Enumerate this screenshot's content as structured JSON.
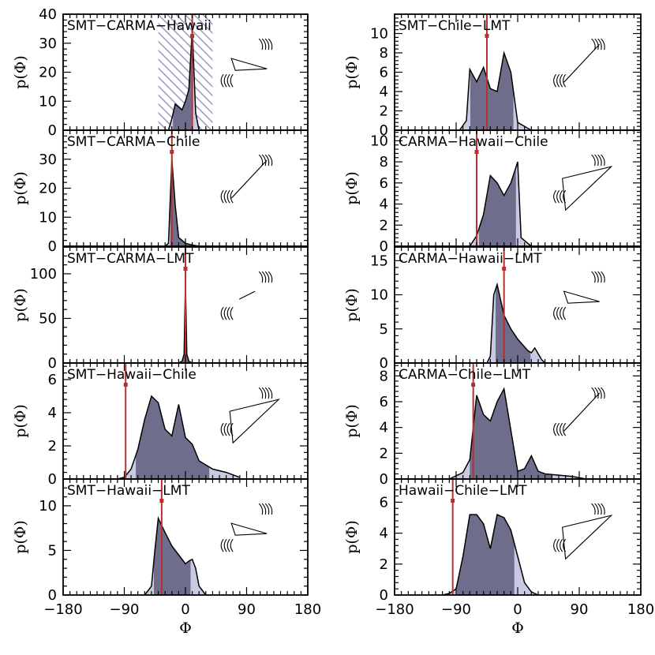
{
  "chart_data": [
    {
      "type": "area",
      "title": "SMT−CARMA−Hawaii",
      "ylabel": "p(Φ)",
      "ylim": [
        0,
        40
      ],
      "yticks": [
        0,
        10,
        20,
        30,
        40
      ],
      "xlim": [
        -180,
        180
      ],
      "x": [
        -25,
        -20,
        -15,
        -10,
        -5,
        0,
        5,
        10,
        15,
        20
      ],
      "y": [
        0,
        4,
        9,
        8,
        7,
        10,
        14,
        35,
        6,
        0
      ],
      "marker": 10,
      "shaded_region": [
        -40,
        40
      ],
      "sketch": "thin-triangle"
    },
    {
      "type": "area",
      "title": "SMT−Chile−LMT",
      "ylabel": "p(Φ)",
      "ylim": [
        0,
        12
      ],
      "yticks": [
        0,
        2,
        4,
        6,
        8,
        10
      ],
      "xlim": [
        -180,
        180
      ],
      "x": [
        -85,
        -75,
        -70,
        -60,
        -50,
        -40,
        -30,
        -20,
        -10,
        0,
        10,
        20
      ],
      "y": [
        0,
        1,
        6.3,
        5,
        6.5,
        4.3,
        4,
        8,
        6,
        0.8,
        0.4,
        0
      ],
      "marker": -45,
      "sketch": "line"
    },
    {
      "type": "area",
      "title": "SMT−CARMA−Chile",
      "ylabel": "p(Φ)",
      "ylim": [
        0,
        40
      ],
      "yticks": [
        0,
        10,
        20,
        30
      ],
      "xlim": [
        -180,
        180
      ],
      "x": [
        -30,
        -25,
        -20,
        -15,
        -10,
        0,
        10,
        20
      ],
      "y": [
        0,
        1,
        30,
        14,
        3,
        1,
        0.4,
        0
      ],
      "marker": -20,
      "sketch": "line"
    },
    {
      "type": "area",
      "title": "CARMA−Hawaii−Chile",
      "ylabel": "p(Φ)",
      "ylim": [
        0,
        11
      ],
      "yticks": [
        0,
        2,
        4,
        6,
        8,
        10
      ],
      "xlim": [
        -180,
        180
      ],
      "x": [
        -70,
        -60,
        -50,
        -40,
        -30,
        -20,
        -10,
        0,
        5,
        20
      ],
      "y": [
        0,
        1,
        3,
        6.7,
        6,
        4.8,
        6,
        8,
        0.8,
        0
      ],
      "marker": -60,
      "sketch": "wide-triangle"
    },
    {
      "type": "area",
      "title": "SMT−CARMA−LMT",
      "ylabel": "p(Φ)",
      "ylim": [
        0,
        130
      ],
      "yticks": [
        0,
        50,
        100
      ],
      "xlim": [
        -180,
        180
      ],
      "x": [
        -10,
        -5,
        -2,
        0,
        2,
        5,
        10
      ],
      "y": [
        0,
        2,
        10,
        90,
        10,
        2,
        0
      ],
      "marker": 0,
      "sketch": "short-line"
    },
    {
      "type": "area",
      "title": "CARMA−Hawaii−LMT",
      "ylabel": "p(Φ)",
      "ylim": [
        0,
        17
      ],
      "yticks": [
        0,
        5,
        10,
        15
      ],
      "xlim": [
        -180,
        180
      ],
      "x": [
        -45,
        -40,
        -35,
        -30,
        -20,
        -10,
        0,
        15,
        20,
        25,
        35,
        40
      ],
      "y": [
        0,
        1,
        10,
        11.5,
        7,
        5,
        3.5,
        1.8,
        1.5,
        2.2,
        0.5,
        0
      ],
      "marker": -20,
      "sketch": "thin-triangle"
    },
    {
      "type": "area",
      "title": "SMT−Hawaii−Chile",
      "ylabel": "p(Φ)",
      "ylim": [
        0,
        7
      ],
      "yticks": [
        0,
        2,
        4,
        6
      ],
      "xlim": [
        -180,
        180
      ],
      "x": [
        -100,
        -90,
        -80,
        -70,
        -60,
        -50,
        -40,
        -30,
        -20,
        -10,
        0,
        10,
        20,
        40,
        60,
        80
      ],
      "y": [
        0,
        0.1,
        0.6,
        1.8,
        3.6,
        5,
        4.6,
        3,
        2.6,
        4.5,
        2.5,
        2.1,
        1.1,
        0.6,
        0.4,
        0.1
      ],
      "marker": -88,
      "sketch": "wide-triangle"
    },
    {
      "type": "area",
      "title": "CARMA−Chile−LMT",
      "ylabel": "p(Φ)",
      "ylim": [
        0,
        9
      ],
      "yticks": [
        0,
        2,
        4,
        6,
        8
      ],
      "xlim": [
        -180,
        180
      ],
      "x": [
        -100,
        -80,
        -70,
        -60,
        -50,
        -40,
        -30,
        -20,
        0,
        10,
        20,
        30,
        40,
        60,
        80,
        100
      ],
      "y": [
        0,
        0.5,
        1.5,
        6.5,
        5,
        4.5,
        6,
        7,
        0.6,
        0.8,
        1.8,
        0.6,
        0.4,
        0.3,
        0.2,
        0
      ],
      "marker": -65,
      "sketch": "line"
    },
    {
      "type": "area",
      "title": "SMT−Hawaii−LMT",
      "ylabel": "p(Φ)",
      "ylim": [
        0,
        13
      ],
      "yticks": [
        0,
        5,
        10
      ],
      "xlim": [
        -180,
        180
      ],
      "x": [
        -60,
        -50,
        -45,
        -40,
        -30,
        -20,
        -10,
        0,
        5,
        10,
        15,
        20,
        30
      ],
      "y": [
        0,
        1,
        5,
        8.6,
        7,
        5.5,
        4.5,
        3.5,
        3.8,
        4,
        3,
        1,
        0
      ],
      "marker": -35,
      "sketch": "thin-triangle"
    },
    {
      "type": "area",
      "title": "Hawaii−Chile−LMT",
      "ylabel": "p(Φ)",
      "ylim": [
        0,
        7.5
      ],
      "yticks": [
        0,
        2,
        4,
        6
      ],
      "xlim": [
        -180,
        180
      ],
      "x": [
        -110,
        -100,
        -90,
        -80,
        -70,
        -60,
        -50,
        -40,
        -30,
        -20,
        -10,
        0,
        10,
        20,
        30
      ],
      "y": [
        0,
        0.1,
        0.4,
        2.5,
        5.2,
        5.2,
        4.6,
        3,
        5.2,
        5,
        4.2,
        2.5,
        0.8,
        0.2,
        0
      ],
      "marker": -95,
      "sketch": "wide-triangle"
    }
  ],
  "xaxis": {
    "label": "Φ",
    "ticks": [
      -180,
      -90,
      0,
      90,
      180
    ],
    "ticklabels": [
      "−180",
      "−90",
      "0",
      "90",
      "180"
    ]
  },
  "colors": {
    "inner": "#6e6e8c",
    "outer": "#c8c9e2",
    "marker": "#b5302f",
    "shaded": "#9a9ac4"
  }
}
